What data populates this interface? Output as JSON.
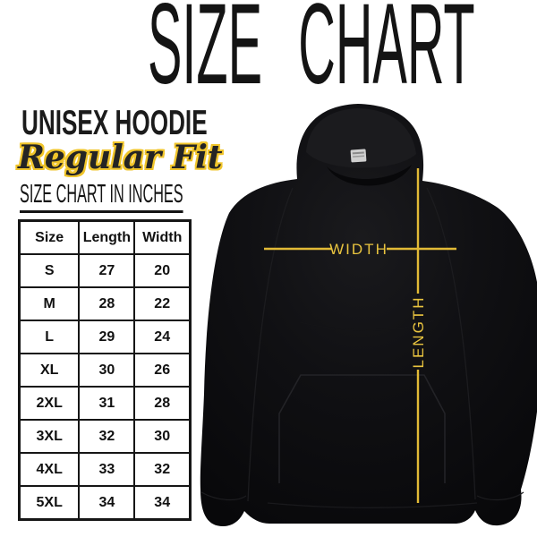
{
  "page": {
    "title": "SIZE CHART",
    "product_line": "UNISEX HOODIE",
    "fit_line": "Regular Fit",
    "units_heading": "SIZE CHART IN INCHES"
  },
  "table": {
    "headers": [
      "Size",
      "Length",
      "Width"
    ],
    "rows": [
      [
        "S",
        "27",
        "20"
      ],
      [
        "M",
        "28",
        "22"
      ],
      [
        "L",
        "29",
        "24"
      ],
      [
        "XL",
        "30",
        "26"
      ],
      [
        "2XL",
        "31",
        "28"
      ],
      [
        "3XL",
        "32",
        "30"
      ],
      [
        "4XL",
        "33",
        "32"
      ],
      [
        "5XL",
        "34",
        "34"
      ]
    ]
  },
  "diagram": {
    "width_label": "WIDTH",
    "length_label": "LENGTH"
  },
  "colors": {
    "accent_yellow": "#e7c03c",
    "text_black": "#141414",
    "hoodie_black": "#0e0e10",
    "background": "#ffffff"
  },
  "chart_data": {
    "type": "table",
    "title": "SIZE CHART",
    "subtitle": "UNISEX HOODIE — Regular Fit",
    "units": "inches",
    "columns": [
      "Size",
      "Length",
      "Width"
    ],
    "rows": [
      [
        "S",
        27,
        20
      ],
      [
        "M",
        28,
        22
      ],
      [
        "L",
        29,
        24
      ],
      [
        "XL",
        30,
        26
      ],
      [
        "2XL",
        31,
        28
      ],
      [
        "3XL",
        32,
        30
      ],
      [
        "4XL",
        33,
        32
      ],
      [
        "5XL",
        34,
        34
      ]
    ]
  }
}
